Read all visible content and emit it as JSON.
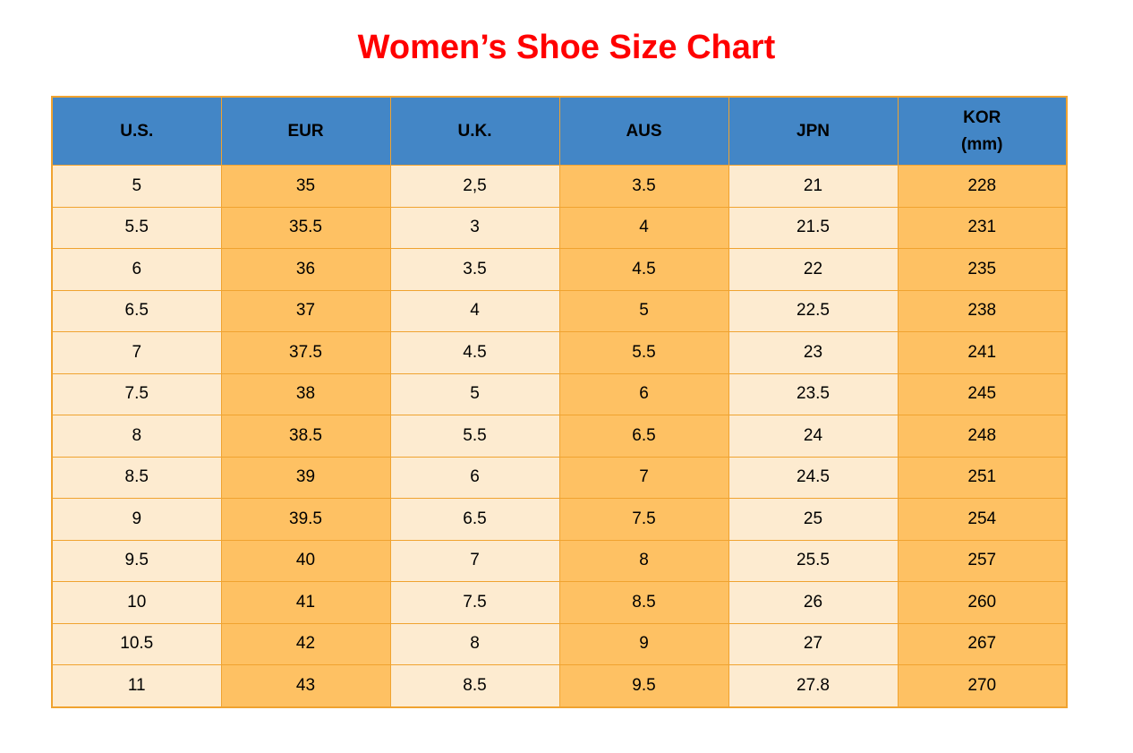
{
  "page": {
    "title": "Women’s Shoe Size Chart"
  },
  "colors": {
    "title_red": "#FF0000",
    "header_blue": "#4386C6",
    "border_orange": "#F0A330",
    "cell_light": "#FDEBD0",
    "cell_dark": "#FEC163",
    "text_black": "#000000"
  },
  "chart_data": {
    "type": "table",
    "title": "Women’s Shoe Size Chart",
    "columns": [
      "U.S.",
      "EUR",
      "U.K.",
      "AUS",
      "JPN",
      "KOR (mm)"
    ],
    "header_lines": [
      [
        "U.S."
      ],
      [
        "EUR"
      ],
      [
        "U.K."
      ],
      [
        "AUS"
      ],
      [
        "JPN"
      ],
      [
        "KOR",
        "(mm)"
      ]
    ],
    "rows": [
      [
        "5",
        "35",
        "2,5",
        "3.5",
        "21",
        "228"
      ],
      [
        "5.5",
        "35.5",
        "3",
        "4",
        "21.5",
        "231"
      ],
      [
        "6",
        "36",
        "3.5",
        "4.5",
        "22",
        "235"
      ],
      [
        "6.5",
        "37",
        "4",
        "5",
        "22.5",
        "238"
      ],
      [
        "7",
        "37.5",
        "4.5",
        "5.5",
        "23",
        "241"
      ],
      [
        "7.5",
        "38",
        "5",
        "6",
        "23.5",
        "245"
      ],
      [
        "8",
        "38.5",
        "5.5",
        "6.5",
        "24",
        "248"
      ],
      [
        "8.5",
        "39",
        "6",
        "7",
        "24.5",
        "251"
      ],
      [
        "9",
        "39.5",
        "6.5",
        "7.5",
        "25",
        "254"
      ],
      [
        "9.5",
        "40",
        "7",
        "8",
        "25.5",
        "257"
      ],
      [
        "10",
        "41",
        "7.5",
        "8.5",
        "26",
        "260"
      ],
      [
        "10.5",
        "42",
        "8",
        "9",
        "27",
        "267"
      ],
      [
        "11",
        "43",
        "8.5",
        "9.5",
        "27.8",
        "270"
      ]
    ]
  }
}
